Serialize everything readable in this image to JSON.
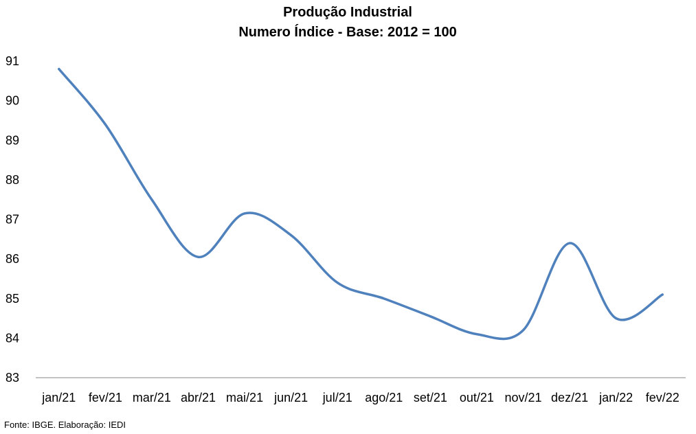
{
  "chart_data": {
    "type": "line",
    "title": "Produção Industrial",
    "subtitle": "Numero Índice - Base: 2012 = 100",
    "xlabel": "",
    "ylabel": "",
    "categories": [
      "jan/21",
      "fev/21",
      "mar/21",
      "abr/21",
      "mai/21",
      "jun/21",
      "jul/21",
      "ago/21",
      "set/21",
      "out/21",
      "nov/21",
      "dez/21",
      "jan/22",
      "fev/22"
    ],
    "series": [
      {
        "values": [
          90.8,
          89.4,
          87.5,
          86.05,
          87.15,
          86.6,
          85.4,
          85.0,
          84.55,
          84.1,
          84.2,
          86.4,
          84.5,
          85.1
        ],
        "color": "#4f81bd"
      }
    ],
    "ylim": [
      83,
      91
    ],
    "yticks": [
      83,
      84,
      85,
      86,
      87,
      88,
      89,
      90,
      91
    ],
    "grid": false,
    "legend": "none",
    "axis_color": "#868686"
  },
  "source_note": "Fonte: IBGE. Elaboração: IEDI"
}
